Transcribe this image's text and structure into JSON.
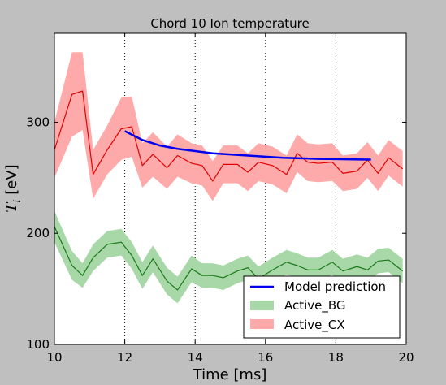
{
  "chart_data": {
    "type": "line",
    "title": "Chord 10 Ion temperature",
    "xlabel": "Time [ms]",
    "ylabel": {
      "symbol": "T",
      "subscript": "i",
      "unit": "[eV]"
    },
    "xlim": [
      10,
      20
    ],
    "ylim": [
      100,
      380
    ],
    "xticks": [
      10,
      12,
      14,
      16,
      18,
      20
    ],
    "yticks": [
      100,
      200,
      300
    ],
    "vlines": [
      12,
      14,
      16,
      18
    ],
    "legend_position": "lower right",
    "series": [
      {
        "name": "Active_CX",
        "color": "#e00000",
        "band_color": "#ffaaaa",
        "x": [
          10.0,
          10.5,
          10.8,
          11.1,
          11.5,
          11.9,
          12.2,
          12.5,
          12.8,
          13.2,
          13.5,
          13.9,
          14.2,
          14.5,
          14.8,
          15.2,
          15.5,
          15.8,
          16.2,
          16.6,
          16.9,
          17.2,
          17.5,
          17.9,
          18.2,
          18.6,
          18.9,
          19.2,
          19.5,
          19.9
        ],
        "y": [
          275,
          325,
          328,
          253,
          275,
          294,
          296,
          261,
          271,
          259,
          270,
          263,
          261,
          247,
          262,
          262,
          255,
          264,
          261,
          253,
          272,
          264,
          263,
          264,
          254,
          256,
          266,
          254,
          268,
          258
        ],
        "band_halfwidth": [
          25,
          38,
          35,
          22,
          22,
          28,
          27,
          20,
          20,
          19,
          19,
          18,
          18,
          18,
          17,
          17,
          17,
          17,
          17,
          17,
          17,
          17,
          17,
          17,
          16,
          16,
          16,
          16,
          16,
          16
        ]
      },
      {
        "name": "Active_BG",
        "color": "#1a7a1a",
        "band_color": "#a8d8a8",
        "x": [
          10.0,
          10.5,
          10.8,
          11.1,
          11.5,
          11.9,
          12.2,
          12.5,
          12.8,
          13.2,
          13.5,
          13.9,
          14.2,
          14.5,
          14.8,
          15.2,
          15.5,
          15.8,
          16.2,
          16.6,
          16.9,
          17.2,
          17.5,
          17.9,
          18.2,
          18.6,
          18.9,
          19.2,
          19.5,
          19.9
        ],
        "y": [
          206,
          171,
          162,
          178,
          190,
          192,
          180,
          162,
          177,
          157,
          149,
          168,
          162,
          162,
          160,
          166,
          169,
          159,
          167,
          174,
          171,
          167,
          167,
          174,
          166,
          170,
          167,
          175,
          176,
          166
        ],
        "band_halfwidth": [
          14,
          13,
          11,
          12,
          12,
          12,
          12,
          12,
          12,
          12,
          12,
          12,
          11,
          11,
          11,
          11,
          11,
          11,
          11,
          11,
          11,
          11,
          11,
          11,
          11,
          11,
          11,
          11,
          11,
          11
        ]
      },
      {
        "name": "Model prediction",
        "color": "#0000ee",
        "x": [
          12.0,
          12.5,
          13.0,
          13.5,
          14.0,
          14.5,
          15.0,
          15.5,
          16.0,
          16.5,
          17.0,
          17.5,
          18.0,
          18.5,
          19.0
        ],
        "y": [
          292,
          284,
          279,
          276,
          274,
          272,
          271,
          270,
          269,
          268,
          267.5,
          267,
          266.8,
          266.5,
          266.3
        ]
      }
    ],
    "legend": [
      "Model prediction",
      "Active_BG",
      "Active_CX"
    ]
  }
}
